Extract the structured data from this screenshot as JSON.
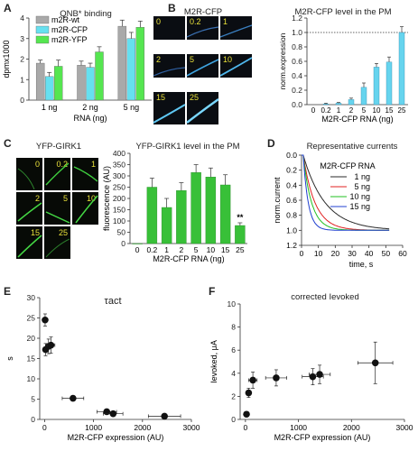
{
  "panels": {
    "A": {
      "label": "A",
      "title": "QNB* binding"
    },
    "B": {
      "label": "B",
      "image_title": "M2R-CFP",
      "title": "M2R-CFP level in the PM",
      "tiles": [
        "0",
        "0.2",
        "1",
        "2",
        "5",
        "10",
        "15",
        "25"
      ]
    },
    "C": {
      "label": "C",
      "image_title": "YFP-GIRK1",
      "title": "YFP-GIRK1 level in the PM",
      "tiles": [
        "0",
        "0.2",
        "1",
        "2",
        "5",
        "10",
        "15",
        "25"
      ],
      "annotation": "**"
    },
    "D": {
      "label": "D",
      "title": "Representative currents",
      "legend_title": "M2R-CFP RNA"
    },
    "E": {
      "label": "E",
      "title": "τact"
    },
    "F": {
      "label": "F",
      "title": "corrected Ievoked"
    }
  },
  "chart_data": [
    {
      "id": "A",
      "type": "bar",
      "title": "QNB* binding",
      "xlabel": "RNA (ng)",
      "ylabel": "dpmx1000",
      "categories": [
        "1 ng",
        "2 ng",
        "5 ng"
      ],
      "ylim": [
        0,
        4
      ],
      "yticks": [
        0,
        1,
        2,
        3,
        4
      ],
      "series": [
        {
          "name": "m2R-wt",
          "color": "#a9a9a9",
          "values": [
            1.8,
            1.7,
            3.6
          ],
          "err": [
            0.15,
            0.2,
            0.3
          ]
        },
        {
          "name": "m2R-CFP",
          "color": "#66e0f0",
          "values": [
            1.15,
            1.6,
            3.0
          ],
          "err": [
            0.2,
            0.2,
            0.3
          ]
        },
        {
          "name": "m2R-YFP",
          "color": "#55e650",
          "values": [
            1.65,
            2.35,
            3.55
          ],
          "err": [
            0.3,
            0.25,
            0.3
          ]
        }
      ]
    },
    {
      "id": "B",
      "type": "bar",
      "title": "M2R-CFP level in the PM",
      "xlabel": "M2R-CFP RNA (ng)",
      "ylabel": "norm.expression",
      "categories": [
        "0",
        "0.2",
        "1",
        "2",
        "5",
        "10",
        "15",
        "25"
      ],
      "ylim": [
        0,
        1.2
      ],
      "yticks": [
        0.0,
        0.2,
        0.4,
        0.6,
        0.8,
        1.0,
        1.2
      ],
      "reference_line": 1.0,
      "series": [
        {
          "color": "#66d4ee",
          "values": [
            0.0,
            0.01,
            0.02,
            0.07,
            0.24,
            0.52,
            0.59,
            1.0
          ],
          "err": [
            0,
            0.01,
            0.01,
            0.02,
            0.06,
            0.05,
            0.07,
            0.08
          ]
        }
      ]
    },
    {
      "id": "C",
      "type": "bar",
      "title": "YFP-GIRK1 level in the PM",
      "xlabel": "M2R-CFP RNA (ng)",
      "ylabel": "fluorescence (AU)",
      "categories": [
        "0",
        "0.2",
        "1",
        "2",
        "5",
        "10",
        "15",
        "25"
      ],
      "ylim": [
        0,
        400
      ],
      "yticks": [
        0,
        50,
        100,
        150,
        200,
        250,
        300,
        350,
        400
      ],
      "series": [
        {
          "color": "#38c038",
          "values": [
            0,
            250,
            160,
            235,
            315,
            295,
            260,
            80
          ],
          "err": [
            0,
            40,
            40,
            35,
            35,
            40,
            45,
            12
          ]
        }
      ]
    },
    {
      "id": "D",
      "type": "line",
      "title": "Representative currents",
      "xlabel": "time, s",
      "ylabel": "norm.current",
      "xlim": [
        0,
        60
      ],
      "ylim": [
        0,
        1.2
      ],
      "y_inverted": true,
      "xticks": [
        0,
        10,
        20,
        30,
        40,
        50,
        60
      ],
      "yticks": [
        0.0,
        0.2,
        0.4,
        0.6,
        0.8,
        1.0,
        1.2
      ],
      "series": [
        {
          "name": "1 ng",
          "color": "#2a2a2a",
          "tau": 13
        },
        {
          "name": "5 ng",
          "color": "#e02020",
          "tau": 7
        },
        {
          "name": "10 ng",
          "color": "#22c022",
          "tau": 5
        },
        {
          "name": "15 ng",
          "color": "#2040d0",
          "tau": 3
        }
      ]
    },
    {
      "id": "E",
      "type": "scatter",
      "title": "τact",
      "xlabel": "M2R-CFP expression (AU)",
      "ylabel": "s",
      "xlim": [
        -100,
        3000
      ],
      "ylim": [
        0,
        30
      ],
      "xticks": [
        0,
        1000,
        2000,
        3000
      ],
      "yticks": [
        0,
        5,
        10,
        15,
        20,
        25,
        30
      ],
      "points": [
        {
          "x": 10,
          "y": 24.5,
          "xerr": 20,
          "yerr": 1.5
        },
        {
          "x": 20,
          "y": 17.2,
          "xerr": 30,
          "yerr": 1.5
        },
        {
          "x": 80,
          "y": 18.0,
          "xerr": 60,
          "yerr": 1.8
        },
        {
          "x": 130,
          "y": 18.3,
          "xerr": 80,
          "yerr": 2.0
        },
        {
          "x": 580,
          "y": 5.2,
          "xerr": 220,
          "yerr": 0.6
        },
        {
          "x": 1270,
          "y": 1.9,
          "xerr": 200,
          "yerr": 0.3
        },
        {
          "x": 1400,
          "y": 1.4,
          "xerr": 200,
          "yerr": 0.3
        },
        {
          "x": 2450,
          "y": 0.8,
          "xerr": 330,
          "yerr": 0.2
        }
      ]
    },
    {
      "id": "F",
      "type": "scatter",
      "title": "corrected Ievoked",
      "xlabel": "M2R-CFP expression (AU)",
      "ylabel": "Ievoked, μA",
      "xlim": [
        -100,
        3000
      ],
      "ylim": [
        0,
        10
      ],
      "xticks": [
        0,
        1000,
        2000,
        3000
      ],
      "yticks": [
        0,
        2,
        4,
        6,
        8,
        10
      ],
      "points": [
        {
          "x": 20,
          "y": 0.45,
          "xerr": 20,
          "yerr": 0.1
        },
        {
          "x": 60,
          "y": 2.3,
          "xerr": 40,
          "yerr": 0.4
        },
        {
          "x": 140,
          "y": 3.4,
          "xerr": 80,
          "yerr": 0.7
        },
        {
          "x": 580,
          "y": 3.6,
          "xerr": 200,
          "yerr": 0.7
        },
        {
          "x": 1270,
          "y": 3.7,
          "xerr": 200,
          "yerr": 0.7
        },
        {
          "x": 1400,
          "y": 3.9,
          "xerr": 200,
          "yerr": 0.8
        },
        {
          "x": 2450,
          "y": 4.9,
          "xerr": 330,
          "yerr": 1.8
        }
      ]
    }
  ]
}
